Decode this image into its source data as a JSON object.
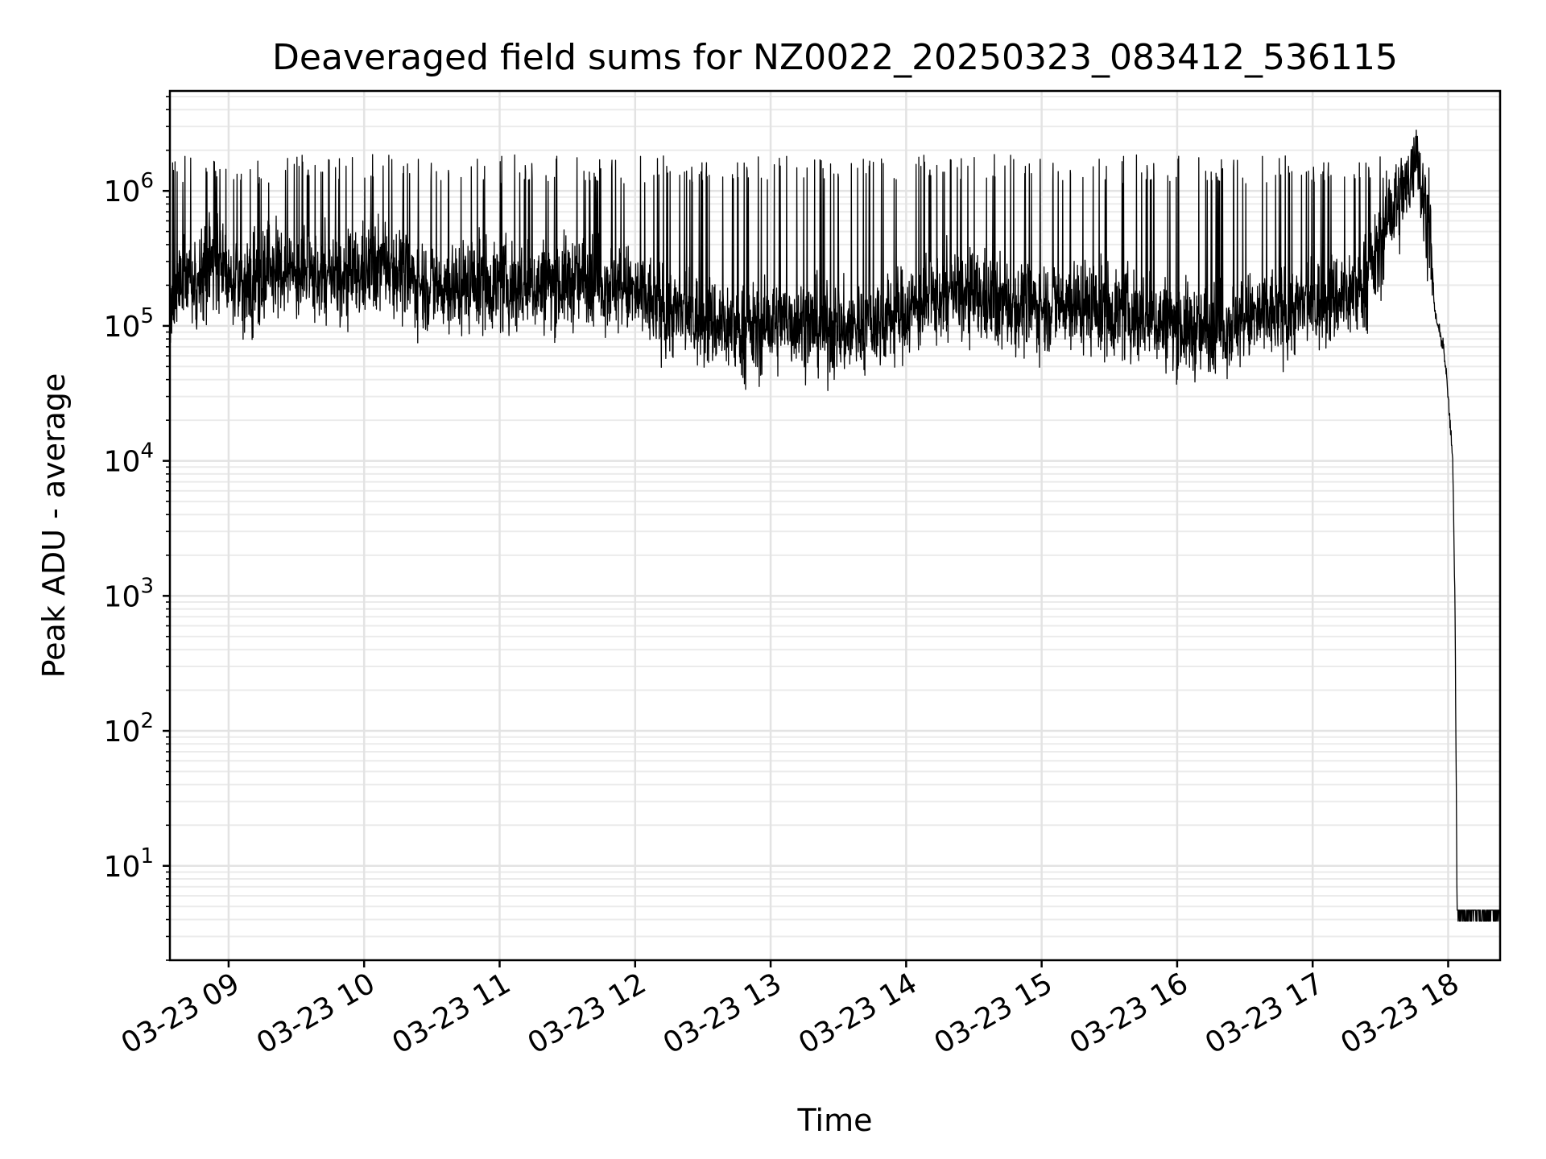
{
  "chart_data": {
    "type": "line",
    "title": "Deaveraged field sums for NZ0022_20250323_083412_536115",
    "xlabel": "Time",
    "ylabel": "Peak ADU - average",
    "yscale": "log",
    "grid": true,
    "grid_minor": true,
    "line_color": "#000000",
    "xlim": [
      "2025-03-23 08:34",
      "2025-03-23 18:23"
    ],
    "ylim": [
      2,
      5500000
    ],
    "x_ticks": [
      "03-23 09",
      "03-23 10",
      "03-23 11",
      "03-23 12",
      "03-23 13",
      "03-23 14",
      "03-23 15",
      "03-23 16",
      "03-23 17",
      "03-23 18"
    ],
    "x_tick_times": [
      "2025-03-23 09:00",
      "2025-03-23 10:00",
      "2025-03-23 11:00",
      "2025-03-23 12:00",
      "2025-03-23 13:00",
      "2025-03-23 14:00",
      "2025-03-23 15:00",
      "2025-03-23 16:00",
      "2025-03-23 17:00",
      "2025-03-23 18:00"
    ],
    "y_ticks": [
      {
        "value": 10,
        "base": "10",
        "exp": "1"
      },
      {
        "value": 100,
        "base": "10",
        "exp": "2"
      },
      {
        "value": 1000,
        "base": "10",
        "exp": "3"
      },
      {
        "value": 10000,
        "base": "10",
        "exp": "4"
      },
      {
        "value": 100000,
        "base": "10",
        "exp": "5"
      },
      {
        "value": 1000000,
        "base": "10",
        "exp": "6"
      }
    ],
    "series": [
      {
        "points": [
          [
            "2025-03-23 08:34",
            120000
          ],
          [
            "2025-03-23 08:40",
            250000
          ],
          [
            "2025-03-23 08:46",
            180000
          ],
          [
            "2025-03-23 08:52",
            300000
          ],
          [
            "2025-03-23 09:00",
            220000
          ],
          [
            "2025-03-23 09:10",
            200000
          ],
          [
            "2025-03-23 09:20",
            260000
          ],
          [
            "2025-03-23 09:30",
            240000
          ],
          [
            "2025-03-23 09:40",
            230000
          ],
          [
            "2025-03-23 09:50",
            210000
          ],
          [
            "2025-03-23 10:00",
            250000
          ],
          [
            "2025-03-23 10:10",
            300000
          ],
          [
            "2025-03-23 10:20",
            220000
          ],
          [
            "2025-03-23 10:30",
            200000
          ],
          [
            "2025-03-23 10:40",
            190000
          ],
          [
            "2025-03-23 10:50",
            210000
          ],
          [
            "2025-03-23 11:00",
            200000
          ],
          [
            "2025-03-23 11:10",
            190000
          ],
          [
            "2025-03-23 11:20",
            200000
          ],
          [
            "2025-03-23 11:30",
            210000
          ],
          [
            "2025-03-23 11:40",
            220000
          ],
          [
            "2025-03-23 11:50",
            200000
          ],
          [
            "2025-03-23 12:00",
            170000
          ],
          [
            "2025-03-23 12:10",
            140000
          ],
          [
            "2025-03-23 12:20",
            120000
          ],
          [
            "2025-03-23 12:30",
            110000
          ],
          [
            "2025-03-23 12:40",
            100000
          ],
          [
            "2025-03-23 12:50",
            90000
          ],
          [
            "2025-03-23 13:00",
            100000
          ],
          [
            "2025-03-23 13:10",
            110000
          ],
          [
            "2025-03-23 13:20",
            100000
          ],
          [
            "2025-03-23 13:30",
            90000
          ],
          [
            "2025-03-23 13:40",
            100000
          ],
          [
            "2025-03-23 13:50",
            110000
          ],
          [
            "2025-03-23 14:00",
            130000
          ],
          [
            "2025-03-23 14:10",
            150000
          ],
          [
            "2025-03-23 14:20",
            170000
          ],
          [
            "2025-03-23 14:30",
            160000
          ],
          [
            "2025-03-23 14:40",
            150000
          ],
          [
            "2025-03-23 14:50",
            140000
          ],
          [
            "2025-03-23 15:00",
            140000
          ],
          [
            "2025-03-23 15:10",
            150000
          ],
          [
            "2025-03-23 15:20",
            140000
          ],
          [
            "2025-03-23 15:30",
            130000
          ],
          [
            "2025-03-23 15:40",
            120000
          ],
          [
            "2025-03-23 15:50",
            110000
          ],
          [
            "2025-03-23 16:00",
            100000
          ],
          [
            "2025-03-23 16:10",
            90000
          ],
          [
            "2025-03-23 16:20",
            100000
          ],
          [
            "2025-03-23 16:30",
            110000
          ],
          [
            "2025-03-23 16:40",
            120000
          ],
          [
            "2025-03-23 16:50",
            130000
          ],
          [
            "2025-03-23 17:00",
            140000
          ],
          [
            "2025-03-23 17:10",
            160000
          ],
          [
            "2025-03-23 17:20",
            180000
          ],
          [
            "2025-03-23 17:28",
            300000
          ],
          [
            "2025-03-23 17:33",
            600000
          ],
          [
            "2025-03-23 17:38",
            800000
          ],
          [
            "2025-03-23 17:43",
            1100000
          ],
          [
            "2025-03-23 17:46",
            2700000
          ],
          [
            "2025-03-23 17:48",
            1000000
          ],
          [
            "2025-03-23 17:52",
            500000
          ],
          [
            "2025-03-23 17:54",
            130000
          ],
          [
            "2025-03-23 17:56",
            90000
          ],
          [
            "2025-03-23 17:58",
            70000
          ],
          [
            "2025-03-23 18:00",
            30000
          ],
          [
            "2025-03-23 18:02",
            10000
          ],
          [
            "2025-03-23 18:03",
            1000
          ],
          [
            "2025-03-23 18:04",
            4
          ],
          [
            "2025-03-23 18:12",
            4
          ],
          [
            "2025-03-23 18:23",
            4
          ]
        ]
      }
    ]
  }
}
